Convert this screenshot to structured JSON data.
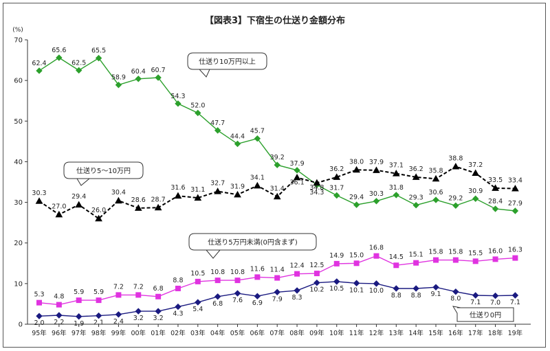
{
  "chart_data": {
    "type": "line",
    "title": "【図表3】下宿生の仕送り金額分布",
    "ylabel": "(%)",
    "ylim": [
      0,
      70
    ],
    "yticks": [
      0,
      10,
      20,
      30,
      40,
      50,
      60,
      70
    ],
    "grid": false,
    "categories": [
      "95年",
      "96年",
      "97年",
      "98年",
      "99年",
      "00年",
      "01年",
      "02年",
      "03年",
      "04年",
      "05年",
      "06年",
      "07年",
      "08年",
      "09年",
      "10年",
      "11年",
      "12年",
      "13年",
      "14年",
      "15年",
      "16年",
      "17年",
      "18年",
      "19年"
    ],
    "series": [
      {
        "name": "仕送り10万円以上",
        "color": "#2ca02c",
        "marker": "diamond",
        "dash": "solid",
        "values": [
          62.4,
          65.6,
          62.5,
          65.5,
          58.9,
          60.4,
          60.7,
          54.3,
          52.0,
          47.7,
          44.4,
          45.7,
          39.2,
          37.9,
          34.3,
          31.7,
          29.4,
          30.3,
          31.8,
          29.3,
          30.6,
          29.2,
          30.9,
          28.4,
          27.9
        ],
        "labels": [
          "62.4",
          "65.6",
          "62.5",
          "65.5",
          "58.9",
          "60.4",
          "60.7",
          "54.3",
          "52.0",
          "47.7",
          "44.4",
          "45.7",
          "39.2",
          "37.9",
          "34.3",
          "31.7",
          "29.4",
          "30.3",
          "31.8",
          "29.3",
          "30.6",
          "29.2",
          "30.9",
          "28.4",
          "27.9"
        ]
      },
      {
        "name": "仕送り5～10万円",
        "color": "#000000",
        "marker": "triangle",
        "dash": "dashed",
        "values": [
          30.3,
          27.0,
          29.4,
          26.0,
          30.4,
          28.6,
          28.7,
          31.6,
          31.1,
          32.7,
          31.9,
          34.1,
          31.4,
          36.1,
          34.8,
          36.2,
          38.0,
          37.9,
          37.1,
          36.2,
          35.8,
          38.8,
          37.2,
          33.5,
          33.4
        ],
        "labels": [
          "30.3",
          "27.0",
          "29.4",
          "26.0",
          "30.4",
          "28.6",
          "28.7",
          "31.6",
          "31.1",
          "32.7",
          "31.9",
          "34.1",
          "31.4",
          "36.1",
          "34.8",
          "36.2",
          "38.0",
          "37.9",
          "37.1",
          "36.2",
          "35.8",
          "38.8",
          "37.2",
          "33.5",
          "33.4"
        ]
      },
      {
        "name": "仕送り5万円未満(0円含まず)",
        "color": "#e033e0",
        "marker": "square",
        "dash": "solid",
        "values": [
          5.3,
          4.8,
          5.9,
          5.9,
          7.2,
          7.2,
          6.8,
          8.8,
          10.5,
          10.8,
          10.8,
          11.6,
          11.4,
          12.4,
          12.5,
          14.9,
          15.0,
          16.8,
          14.5,
          15.1,
          15.8,
          15.8,
          15.5,
          16.0,
          16.3
        ],
        "labels": [
          "5.3",
          "4.8",
          "5.9",
          "5.9",
          "7.2",
          "7.2",
          "6.8",
          "8.8",
          "10.5",
          "10.8",
          "10.8",
          "11.6",
          "11.4",
          "12.4",
          "12.5",
          "14.9",
          "15.0",
          "16.8",
          "14.5",
          "15.1",
          "15.8",
          "15.8",
          "15.5",
          "16.0",
          "16.3"
        ]
      },
      {
        "name": "仕送り0円",
        "color": "#1a1a80",
        "marker": "diamond",
        "dash": "solid",
        "values": [
          2.0,
          2.2,
          1.9,
          2.1,
          2.4,
          3.2,
          3.2,
          4.3,
          5.4,
          6.8,
          7.6,
          6.9,
          7.9,
          8.3,
          10.2,
          10.5,
          10.1,
          10.0,
          8.8,
          8.8,
          9.1,
          8.0,
          7.1,
          7.0,
          7.1
        ],
        "labels": [
          "2.0",
          "2.2",
          "1.9",
          "2.1",
          "2.4",
          "3.2",
          "3.2",
          "4.3",
          "5.4",
          "6.8",
          "7.6",
          "6.9",
          "7.9",
          "8.3",
          "10.2",
          "10.5",
          "10.1",
          "10.0",
          "8.8",
          "8.8",
          "9.1",
          "8.0",
          "7.1",
          "7.0",
          "7.1"
        ]
      }
    ],
    "callouts": [
      "仕送り10万円以上",
      "仕送り5～10万円",
      "仕送り5万円未満(0円含まず)",
      "仕送り0円"
    ]
  }
}
